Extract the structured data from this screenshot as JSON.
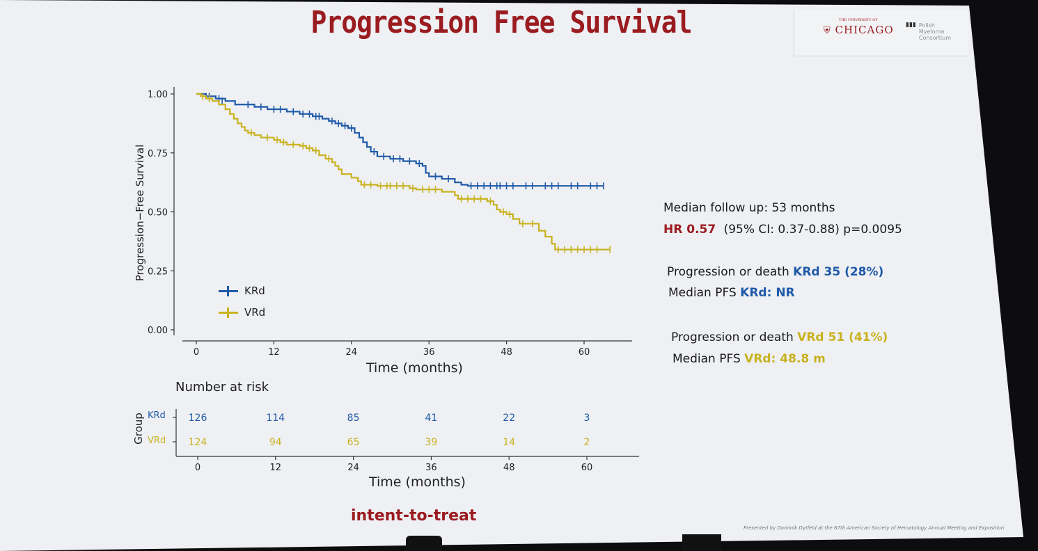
{
  "slide": {
    "title": "Progression Free Survival",
    "footer_label": "intent-to-treat",
    "credit": "Presented by Dominik Dytfeld at the 67th American Society of Hematology Annual Meeting and Exposition",
    "logos": {
      "chicago_small": "THE UNIVERSITY OF",
      "chicago": "CHICAGO",
      "pmc_line1": "Polish",
      "pmc_line2": "Myeloma",
      "pmc_line3": "Consortium"
    }
  },
  "info": {
    "follow_up": "Median follow up: 53 months",
    "hr_label": "HR 0.57",
    "hr_detail": "(95% CI: 0.37-0.88) p=0.0095",
    "krd_events_prefix": "Progression or death ",
    "krd_events_value": "KRd 35 (28%)",
    "krd_median_prefix": "Median PFS ",
    "krd_median_value": "KRd: NR",
    "vrd_events_prefix": "Progression or death ",
    "vrd_events_value": "VRd 51 (41%)",
    "vrd_median_prefix": "Median PFS ",
    "vrd_median_value": "VRd: 48.8 m"
  },
  "colors": {
    "krd": "#1f5aa8",
    "vrd": "#c9b21f",
    "accent": "#9b1c20"
  },
  "chart_data": [
    {
      "type": "line",
      "subtype": "kaplan-meier",
      "title": "",
      "xlabel": "Time (months)",
      "ylabel": "Progression−Free Survival",
      "xlim": [
        -1,
        66
      ],
      "ylim": [
        0,
        1
      ],
      "xticks": [
        0,
        12,
        24,
        36,
        48,
        60
      ],
      "yticks": [
        0.0,
        0.25,
        0.5,
        0.75,
        1.0
      ],
      "ytick_labels": [
        "0.00",
        "0.25",
        "0.50",
        "0.75",
        "1.00"
      ],
      "legend_position": "bottom-left",
      "series": [
        {
          "name": "KRd",
          "color": "#1f5aa8",
          "steps": [
            [
              0,
              1.0
            ],
            [
              1.5,
              0.99
            ],
            [
              3,
              0.98
            ],
            [
              4.5,
              0.97
            ],
            [
              6,
              0.955
            ],
            [
              9,
              0.945
            ],
            [
              11,
              0.935
            ],
            [
              14,
              0.925
            ],
            [
              16,
              0.915
            ],
            [
              18,
              0.905
            ],
            [
              19.5,
              0.895
            ],
            [
              20.5,
              0.885
            ],
            [
              21.5,
              0.875
            ],
            [
              22.5,
              0.865
            ],
            [
              23.5,
              0.855
            ],
            [
              24.5,
              0.835
            ],
            [
              25.2,
              0.815
            ],
            [
              25.8,
              0.795
            ],
            [
              26.4,
              0.775
            ],
            [
              27,
              0.755
            ],
            [
              28,
              0.735
            ],
            [
              30,
              0.725
            ],
            [
              32,
              0.715
            ],
            [
              34,
              0.705
            ],
            [
              35,
              0.695
            ],
            [
              35.5,
              0.665
            ],
            [
              36,
              0.65
            ],
            [
              38,
              0.64
            ],
            [
              40,
              0.625
            ],
            [
              41,
              0.615
            ],
            [
              42,
              0.61
            ],
            [
              63,
              0.61
            ]
          ],
          "censored": [
            [
              2,
              0.99
            ],
            [
              3.5,
              0.98
            ],
            [
              4,
              0.97
            ],
            [
              8,
              0.955
            ],
            [
              10,
              0.945
            ],
            [
              12,
              0.935
            ],
            [
              13,
              0.935
            ],
            [
              15,
              0.925
            ],
            [
              16.5,
              0.915
            ],
            [
              17.5,
              0.915
            ],
            [
              18.5,
              0.905
            ],
            [
              19,
              0.905
            ],
            [
              21,
              0.885
            ],
            [
              22,
              0.875
            ],
            [
              23,
              0.865
            ],
            [
              24,
              0.855
            ],
            [
              27.5,
              0.755
            ],
            [
              29,
              0.735
            ],
            [
              30.5,
              0.725
            ],
            [
              31.5,
              0.725
            ],
            [
              33,
              0.715
            ],
            [
              34.5,
              0.705
            ],
            [
              37,
              0.65
            ],
            [
              39,
              0.64
            ],
            [
              42.5,
              0.61
            ],
            [
              43.5,
              0.61
            ],
            [
              44.5,
              0.61
            ],
            [
              45.5,
              0.61
            ],
            [
              46.5,
              0.61
            ],
            [
              47,
              0.61
            ],
            [
              48,
              0.61
            ],
            [
              49,
              0.61
            ],
            [
              51,
              0.61
            ],
            [
              52,
              0.61
            ],
            [
              54,
              0.61
            ],
            [
              55,
              0.61
            ],
            [
              56,
              0.61
            ],
            [
              58,
              0.61
            ],
            [
              59,
              0.61
            ],
            [
              61,
              0.61
            ],
            [
              62,
              0.61
            ],
            [
              63,
              0.61
            ]
          ]
        },
        {
          "name": "VRd",
          "color": "#c9b21f",
          "steps": [
            [
              0,
              1.0
            ],
            [
              0.7,
              0.99
            ],
            [
              1.5,
              0.98
            ],
            [
              2.5,
              0.97
            ],
            [
              3.5,
              0.955
            ],
            [
              4.5,
              0.935
            ],
            [
              5.2,
              0.915
            ],
            [
              5.8,
              0.895
            ],
            [
              6.4,
              0.875
            ],
            [
              7,
              0.86
            ],
            [
              7.5,
              0.845
            ],
            [
              8,
              0.835
            ],
            [
              9,
              0.825
            ],
            [
              10,
              0.815
            ],
            [
              12,
              0.805
            ],
            [
              13,
              0.795
            ],
            [
              14,
              0.785
            ],
            [
              16,
              0.78
            ],
            [
              17,
              0.77
            ],
            [
              18,
              0.76
            ],
            [
              19,
              0.74
            ],
            [
              20,
              0.725
            ],
            [
              21,
              0.71
            ],
            [
              21.5,
              0.695
            ],
            [
              22,
              0.68
            ],
            [
              22.5,
              0.66
            ],
            [
              24,
              0.645
            ],
            [
              25,
              0.63
            ],
            [
              25.5,
              0.615
            ],
            [
              28,
              0.61
            ],
            [
              33,
              0.6
            ],
            [
              34,
              0.595
            ],
            [
              38,
              0.585
            ],
            [
              40,
              0.57
            ],
            [
              40.5,
              0.555
            ],
            [
              45,
              0.545
            ],
            [
              46,
              0.53
            ],
            [
              46.5,
              0.51
            ],
            [
              47,
              0.5
            ],
            [
              48,
              0.49
            ],
            [
              49,
              0.47
            ],
            [
              50,
              0.45
            ],
            [
              53,
              0.42
            ],
            [
              54,
              0.395
            ],
            [
              55,
              0.365
            ],
            [
              55.5,
              0.34
            ],
            [
              64,
              0.34
            ]
          ],
          "censored": [
            [
              1,
              0.99
            ],
            [
              2,
              0.98
            ],
            [
              8.5,
              0.835
            ],
            [
              11,
              0.815
            ],
            [
              12.5,
              0.805
            ],
            [
              13.5,
              0.795
            ],
            [
              15,
              0.785
            ],
            [
              16.5,
              0.78
            ],
            [
              17.5,
              0.77
            ],
            [
              18.5,
              0.76
            ],
            [
              20.5,
              0.725
            ],
            [
              26,
              0.615
            ],
            [
              27,
              0.615
            ],
            [
              28.5,
              0.61
            ],
            [
              29.5,
              0.61
            ],
            [
              30,
              0.61
            ],
            [
              31,
              0.61
            ],
            [
              32,
              0.61
            ],
            [
              33.5,
              0.6
            ],
            [
              35,
              0.595
            ],
            [
              36,
              0.595
            ],
            [
              37,
              0.595
            ],
            [
              41,
              0.555
            ],
            [
              42,
              0.555
            ],
            [
              43,
              0.555
            ],
            [
              44,
              0.555
            ],
            [
              45.5,
              0.545
            ],
            [
              47.5,
              0.5
            ],
            [
              48.5,
              0.49
            ],
            [
              50.5,
              0.45
            ],
            [
              52,
              0.45
            ],
            [
              56,
              0.34
            ],
            [
              57,
              0.34
            ],
            [
              58,
              0.34
            ],
            [
              59,
              0.34
            ],
            [
              60,
              0.34
            ],
            [
              61,
              0.34
            ],
            [
              62,
              0.34
            ],
            [
              64,
              0.34
            ]
          ]
        }
      ]
    },
    {
      "type": "table",
      "title": "Number at risk",
      "xlabel": "Time (months)",
      "ylabel": "Group",
      "x": [
        0,
        12,
        24,
        36,
        48,
        60
      ],
      "rows": [
        {
          "name": "KRd",
          "color": "#1f5aa8",
          "values": [
            126,
            114,
            85,
            41,
            22,
            3
          ]
        },
        {
          "name": "VRd",
          "color": "#c9b21f",
          "values": [
            124,
            94,
            65,
            39,
            14,
            2
          ]
        }
      ]
    }
  ]
}
